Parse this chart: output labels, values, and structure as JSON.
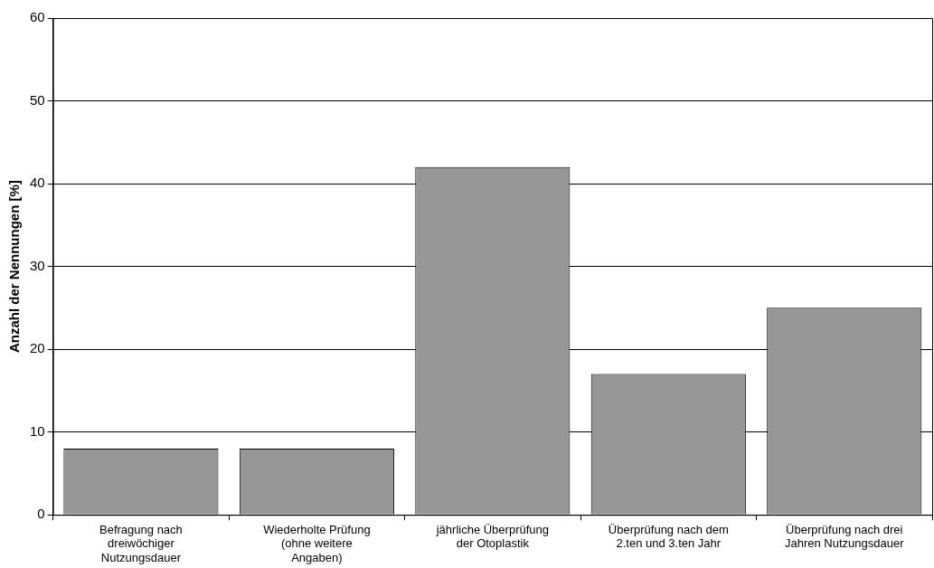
{
  "chart_data": {
    "type": "bar",
    "ylabel": "Anzahl der Nennungen [%]",
    "categories": [
      "Befragung nach\ndreiwöchiger\nNutzungsdauer",
      "Wiederholte Prüfung\n(ohne weitere\nAngaben)",
      "jährliche Überprüfung\nder Otoplastik",
      "Überprüfung nach dem\n2.ten und 3.ten Jahr",
      "Überprüfung nach drei\nJahren Nutzungsdauer"
    ],
    "values": [
      8,
      8,
      42,
      17,
      25
    ],
    "color": "#969696",
    "ylim": [
      0,
      60
    ],
    "yticks": [
      0,
      10,
      20,
      30,
      40,
      50,
      60
    ],
    "grid": "y",
    "legend": false
  }
}
